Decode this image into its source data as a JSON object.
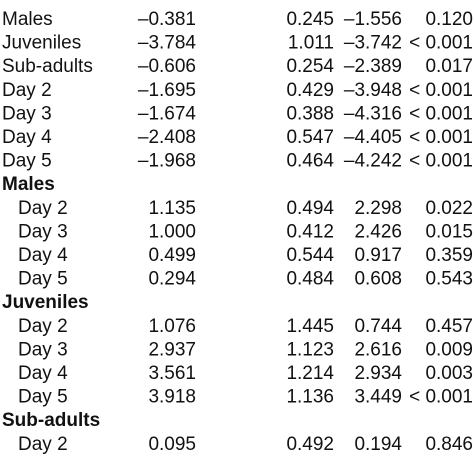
{
  "table": {
    "groups": [
      {
        "rows": [
          {
            "label": "Males",
            "cells": [
              "–0.381",
              "0.245",
              "–1.556",
              "0.120"
            ]
          },
          {
            "label": "Juveniles",
            "cells": [
              "–3.784",
              "1.011",
              "–3.742",
              "< 0.001"
            ]
          },
          {
            "label": "Sub-adults",
            "cells": [
              "–0.606",
              "0.254",
              "–2.389",
              "0.017"
            ]
          },
          {
            "label": "Day 2",
            "cells": [
              "–1.695",
              "0.429",
              "–3.948",
              "< 0.001"
            ]
          },
          {
            "label": "Day 3",
            "cells": [
              "–1.674",
              "0.388",
              "–4.316",
              "< 0.001"
            ]
          },
          {
            "label": "Day 4",
            "cells": [
              "–2.408",
              "0.547",
              "–4.405",
              "< 0.001"
            ]
          },
          {
            "label": "Day 5",
            "cells": [
              "–1.968",
              "0.464",
              "–4.242",
              "< 0.001"
            ]
          }
        ]
      },
      {
        "title": "Males",
        "rows": [
          {
            "label": "Day 2",
            "cells": [
              "1.135",
              "0.494",
              "2.298",
              "0.022"
            ]
          },
          {
            "label": "Day 3",
            "cells": [
              "1.000",
              "0.412",
              "2.426",
              "0.015"
            ]
          },
          {
            "label": "Day 4",
            "cells": [
              "0.499",
              "0.544",
              "0.917",
              "0.359"
            ]
          },
          {
            "label": "Day 5",
            "cells": [
              "0.294",
              "0.484",
              "0.608",
              "0.543"
            ]
          }
        ]
      },
      {
        "title": "Juveniles",
        "rows": [
          {
            "label": "Day 2",
            "cells": [
              "1.076",
              "1.445",
              "0.744",
              "0.457"
            ]
          },
          {
            "label": "Day 3",
            "cells": [
              "2.937",
              "1.123",
              "2.616",
              "0.009"
            ]
          },
          {
            "label": "Day 4",
            "cells": [
              "3.561",
              "1.214",
              "2.934",
              "0.003"
            ]
          },
          {
            "label": "Day 5",
            "cells": [
              "3.918",
              "1.136",
              "3.449",
              "< 0.001"
            ]
          }
        ]
      },
      {
        "title": "Sub-adults",
        "rows": [
          {
            "label": "Day 2",
            "cells": [
              "0.095",
              "0.492",
              "0.194",
              "0.846"
            ]
          }
        ]
      }
    ]
  }
}
